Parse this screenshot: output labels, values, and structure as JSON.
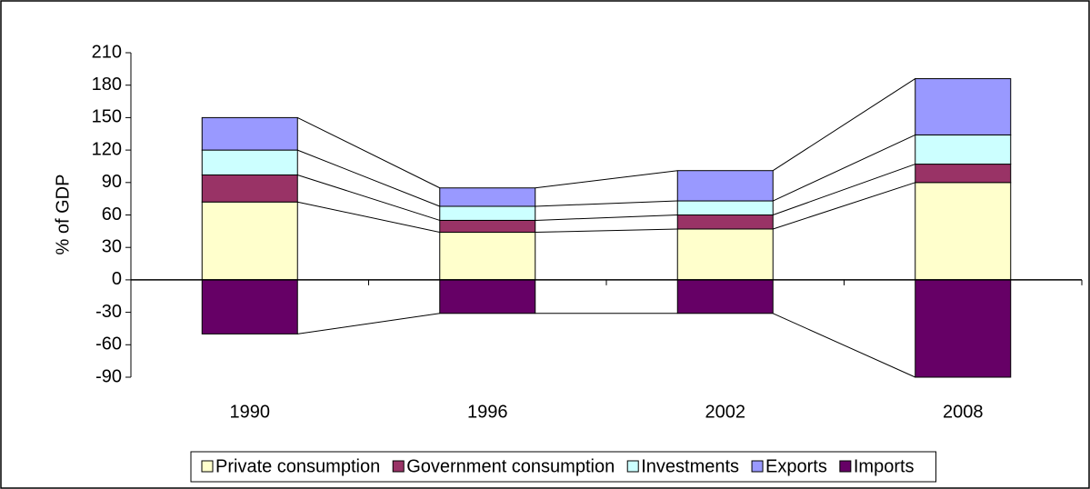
{
  "chart_data": {
    "type": "stacked_bar",
    "y_label": "% of GDP",
    "categories": [
      "1990",
      "1996",
      "2002",
      "2008"
    ],
    "series": [
      {
        "name": "Private consumption",
        "color": "#ffffcc",
        "values": [
          72,
          44,
          47,
          90
        ]
      },
      {
        "name": "Government consumption",
        "color": "#993366",
        "values": [
          25,
          11,
          13,
          17
        ]
      },
      {
        "name": "Investments",
        "color": "#ccffff",
        "values": [
          23,
          13,
          13,
          27
        ]
      },
      {
        "name": "Exports",
        "color": "#9999ff",
        "values": [
          30,
          17,
          28,
          52
        ]
      },
      {
        "name": "Imports",
        "color": "#660066",
        "values": [
          -50,
          -31,
          -31,
          -90
        ]
      }
    ],
    "ylim": [
      -90,
      210
    ],
    "yticks": [
      -90,
      -60,
      -30,
      0,
      30,
      60,
      90,
      120,
      150,
      180,
      210
    ],
    "series_lines": true,
    "legend": "bottom"
  }
}
